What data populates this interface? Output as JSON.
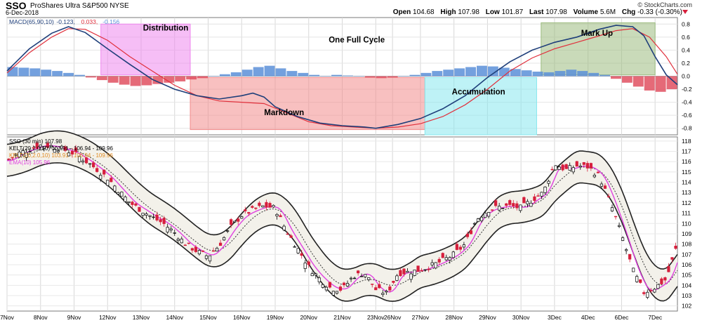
{
  "header": {
    "symbol": "SSO",
    "description": "ProShares Ultra S&P500  NYSE",
    "date": "6-Dec-2018",
    "credit": "© StockCharts.com",
    "open_label": "Open",
    "open": "104.68",
    "high_label": "High",
    "high": "107.98",
    "low_label": "Low",
    "low": "101.87",
    "last_label": "Last",
    "last": "107.98",
    "volume_label": "Volume",
    "volume": "5.6M",
    "chg_label": "Chg",
    "chg": "-0.33 (-0.30%)"
  },
  "colors": {
    "macd_line": "#1f3f7a",
    "signal_line": "#e0303c",
    "hist_pos": "#5b8fd8",
    "hist_neg": "#e05060",
    "candle_up": "#000000",
    "candle_down": "#d61f3c",
    "ema": "#e040e0",
    "kelt_mid": "#333333",
    "kelt_band": "#f3f1ea",
    "distribution": "#ee88ee",
    "markdown": "#f28c8c",
    "accumulation": "#88e8ee",
    "markup": "#9cbc80"
  },
  "chart_data": [
    {
      "type": "line",
      "title": "MACD(65,90,10) -0.123, 0.033, -0.156",
      "legend": [
        {
          "text": "MACD(65,90,10)",
          "color": "#1f3f7a"
        },
        {
          "text": "-0.123,",
          "color": "#1f3f7a"
        },
        {
          "text": "0.033,",
          "color": "#e0303c"
        },
        {
          "text": "-0.156",
          "color": "#5b8fd8"
        }
      ],
      "ylim": [
        -0.9,
        0.9
      ],
      "yticks": [
        "0.8",
        "0.6",
        "0.4",
        "0.2",
        "0.0",
        "-0.2",
        "-0.4",
        "-0.6",
        "-0.8"
      ],
      "ytick_values": [
        0.8,
        0.6,
        0.4,
        0.2,
        0.0,
        -0.2,
        -0.4,
        -0.6,
        -0.8
      ],
      "series": [
        {
          "role": "macd",
          "points": [
            [
              0,
              0.08
            ],
            [
              2,
              0.42
            ],
            [
              4,
              0.66
            ],
            [
              5.5,
              0.76
            ],
            [
              7,
              0.67
            ],
            [
              9,
              0.42
            ],
            [
              11,
              0.18
            ],
            [
              13,
              -0.05
            ],
            [
              15,
              -0.2
            ],
            [
              17,
              -0.3
            ],
            [
              19,
              -0.35
            ],
            [
              21,
              -0.3
            ],
            [
              22,
              -0.26
            ],
            [
              23,
              -0.32
            ],
            [
              24,
              -0.47
            ],
            [
              26,
              -0.62
            ],
            [
              28,
              -0.72
            ],
            [
              30,
              -0.76
            ],
            [
              32,
              -0.78
            ],
            [
              33,
              -0.8
            ],
            [
              35,
              -0.74
            ],
            [
              37,
              -0.65
            ],
            [
              39,
              -0.5
            ],
            [
              41,
              -0.3
            ],
            [
              43,
              -0.02
            ],
            [
              45,
              0.22
            ],
            [
              47,
              0.4
            ],
            [
              49,
              0.52
            ],
            [
              51,
              0.6
            ],
            [
              53,
              0.72
            ],
            [
              54.5,
              0.78
            ],
            [
              56,
              0.76
            ],
            [
              57,
              0.62
            ],
            [
              58,
              0.3
            ],
            [
              59,
              0.02
            ],
            [
              60,
              -0.13
            ]
          ]
        },
        {
          "role": "signal",
          "points": [
            [
              0,
              0.05
            ],
            [
              2,
              0.36
            ],
            [
              4,
              0.6
            ],
            [
              5.5,
              0.73
            ],
            [
              7,
              0.72
            ],
            [
              9,
              0.55
            ],
            [
              11,
              0.3
            ],
            [
              13,
              0.08
            ],
            [
              15,
              -0.14
            ],
            [
              17,
              -0.3
            ],
            [
              19,
              -0.38
            ],
            [
              21,
              -0.4
            ],
            [
              23,
              -0.42
            ],
            [
              25,
              -0.56
            ],
            [
              27,
              -0.7
            ],
            [
              29,
              -0.76
            ],
            [
              31,
              -0.78
            ],
            [
              33,
              -0.8
            ],
            [
              35,
              -0.78
            ],
            [
              37,
              -0.73
            ],
            [
              39,
              -0.62
            ],
            [
              41,
              -0.44
            ],
            [
              43,
              -0.2
            ],
            [
              45,
              0.08
            ],
            [
              47,
              0.28
            ],
            [
              49,
              0.42
            ],
            [
              51,
              0.52
            ],
            [
              53,
              0.62
            ],
            [
              54.5,
              0.7
            ],
            [
              56,
              0.73
            ],
            [
              57.5,
              0.6
            ],
            [
              59,
              0.3
            ],
            [
              60,
              0.03
            ]
          ]
        }
      ],
      "histogram": [
        0.14,
        0.13,
        0.12,
        0.1,
        0.08,
        0.05,
        0.02,
        -0.02,
        -0.06,
        -0.1,
        -0.13,
        -0.15,
        -0.14,
        -0.12,
        -0.1,
        -0.08,
        -0.05,
        -0.03,
        0.0,
        0.03,
        0.06,
        0.1,
        0.14,
        0.16,
        0.12,
        0.08,
        0.05,
        0.02,
        0.0,
        0.02,
        0.01,
        0.0,
        -0.02,
        -0.03,
        -0.02,
        0.0,
        0.02,
        0.05,
        0.08,
        0.1,
        0.12,
        0.14,
        0.16,
        0.15,
        0.13,
        0.11,
        0.09,
        0.07,
        0.06,
        0.08,
        0.1,
        0.08,
        0.05,
        0.02,
        -0.04,
        -0.1,
        -0.16,
        -0.22,
        -0.24,
        -0.2
      ],
      "annotations": [
        {
          "text": "Distribution",
          "label": "Distribution",
          "x0": 8.4,
          "x1": 16.4,
          "y0": 0.8,
          "y1": 0.02,
          "color": "#ee88ee"
        },
        {
          "text": "Markdown",
          "label": "Markdown",
          "x0": 16.4,
          "x1": 37.4,
          "y0": -0.02,
          "y1": -0.82,
          "color": "#f28c8c"
        },
        {
          "text": "Accumulation",
          "label": "Accumulation",
          "x0": 37.4,
          "x1": 47.4,
          "y0": -0.02,
          "y1": -0.9,
          "color": "#88e8ee"
        },
        {
          "text": "Mark Up",
          "label": "Mark Up",
          "x0": 47.8,
          "x1": 58.0,
          "y0": 0.82,
          "y1": 0.02,
          "color": "#9cbc80"
        }
      ],
      "center_text": "One Full Cycle"
    },
    {
      "type": "candlestick",
      "title": "SSO (30 min) 107.98",
      "legend": [
        {
          "text": "SSO (30 min) 107.98",
          "color": "#000000"
        },
        {
          "text": "KELT(20,2.0,10) 103.91 - 106.94 - 109.96",
          "color": "#000000"
        },
        {
          "text": "KELT(20,2.0,10) 103.91 - 106.94 - 109.96",
          "color": "#e08a20"
        },
        {
          "text": "EMA(10) 105.96",
          "color": "#e040e0"
        }
      ],
      "ylim": [
        101.5,
        118.4
      ],
      "yticks": [
        "118",
        "117",
        "116",
        "115",
        "114",
        "113",
        "112",
        "111",
        "110",
        "109",
        "108",
        "107",
        "106",
        "105",
        "104",
        "103",
        "102"
      ],
      "ytick_values": [
        118,
        117,
        116,
        115,
        114,
        113,
        112,
        111,
        110,
        109,
        108,
        107,
        106,
        105,
        104,
        103,
        102
      ],
      "xlabels": [
        "7Nov",
        "8Nov",
        "9Nov",
        "12Nov",
        "13Nov",
        "14Nov",
        "15Nov",
        "16Nov",
        "19Nov",
        "20Nov",
        "21Nov",
        "23Nov",
        "26Nov",
        "27Nov",
        "28Nov",
        "29Nov",
        "30Nov",
        "3Dec",
        "4Dec",
        "6Dec",
        "7Dec"
      ],
      "xlabel_positions": [
        0,
        3,
        6,
        9,
        12,
        15,
        18,
        21,
        24,
        27,
        30,
        33,
        34.5,
        37,
        40,
        43,
        46,
        49,
        52,
        55,
        58
      ],
      "close_path": [
        [
          0,
          116.1
        ],
        [
          1,
          116.8
        ],
        [
          2,
          117.2
        ],
        [
          3,
          117.6
        ],
        [
          4,
          117.5
        ],
        [
          5,
          117.2
        ],
        [
          6,
          116.8
        ],
        [
          7,
          116.1
        ],
        [
          8,
          115.3
        ],
        [
          9,
          114.4
        ],
        [
          10,
          113.2
        ],
        [
          11,
          112.0
        ],
        [
          12,
          111.3
        ],
        [
          13,
          110.6
        ],
        [
          14,
          110.0
        ],
        [
          15,
          109.1
        ],
        [
          16,
          108.0
        ],
        [
          17,
          107.3
        ],
        [
          18,
          106.8
        ],
        [
          19,
          107.9
        ],
        [
          20,
          109.6
        ],
        [
          21,
          110.8
        ],
        [
          22,
          111.3
        ],
        [
          23,
          111.7
        ],
        [
          24,
          111.5
        ],
        [
          25,
          109.3
        ],
        [
          26,
          107.6
        ],
        [
          27,
          105.8
        ],
        [
          28,
          104.6
        ],
        [
          29,
          103.7
        ],
        [
          30,
          103.6
        ],
        [
          31,
          104.9
        ],
        [
          32,
          105.2
        ],
        [
          33,
          103.6
        ],
        [
          34,
          103.2
        ],
        [
          35,
          105.2
        ],
        [
          36,
          105.3
        ],
        [
          37,
          105.5
        ],
        [
          38,
          105.9
        ],
        [
          39,
          106.4
        ],
        [
          40,
          107.0
        ],
        [
          41,
          108.0
        ],
        [
          42,
          110.4
        ],
        [
          43,
          111.3
        ],
        [
          44,
          111.6
        ],
        [
          45,
          111.7
        ],
        [
          46,
          111.5
        ],
        [
          47,
          112.3
        ],
        [
          48,
          113.0
        ],
        [
          49,
          115.8
        ],
        [
          50,
          115.2
        ],
        [
          51,
          115.6
        ],
        [
          52,
          115.5
        ],
        [
          53,
          114.6
        ],
        [
          54,
          112.0
        ],
        [
          55,
          108.9
        ],
        [
          56,
          105.5
        ],
        [
          57,
          103.3
        ],
        [
          58,
          103.8
        ],
        [
          59,
          104.6
        ],
        [
          60,
          108.0
        ]
      ]
    }
  ]
}
